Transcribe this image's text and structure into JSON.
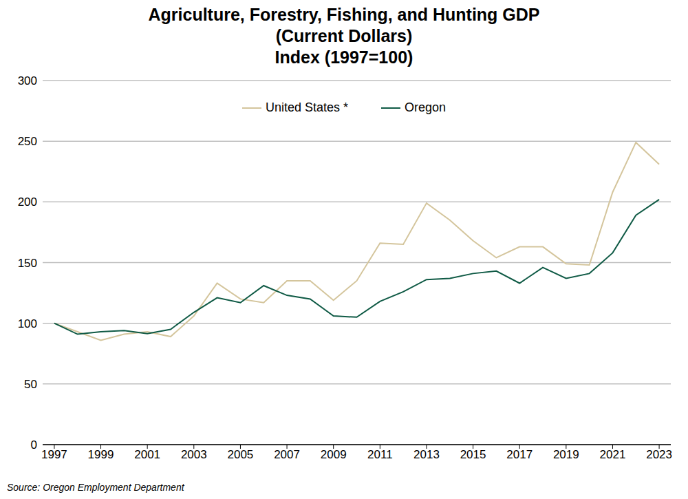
{
  "chart_data": {
    "type": "line",
    "title": "Agriculture, Forestry, Fishing, and Hunting GDP\n(Current Dollars)\nIndex (1997=100)",
    "source": "Source: Oregon Employment Department",
    "x": [
      1997,
      1998,
      1999,
      2000,
      2001,
      2002,
      2003,
      2004,
      2005,
      2006,
      2007,
      2008,
      2009,
      2010,
      2011,
      2012,
      2013,
      2014,
      2015,
      2016,
      2017,
      2018,
      2019,
      2020,
      2021,
      2022,
      2023
    ],
    "series": [
      {
        "name": "United States *",
        "color": "#d4c59c",
        "values": [
          100,
          93,
          86,
          91,
          93,
          89,
          106,
          133,
          120,
          117,
          135,
          135,
          119,
          135,
          166,
          165,
          199,
          185,
          168,
          154,
          163,
          163,
          149,
          148,
          208,
          249,
          231
        ]
      },
      {
        "name": "Oregon",
        "color": "#0f5a45",
        "values": [
          100,
          91,
          93,
          94,
          91.5,
          95,
          109,
          121,
          117,
          131,
          123,
          120,
          106,
          105,
          118,
          126,
          136,
          137,
          141,
          143,
          133,
          146,
          137,
          141,
          158,
          189,
          202
        ]
      }
    ],
    "xlim": [
      1996.5,
      2023.5
    ],
    "xticks": [
      1997,
      1999,
      2001,
      2003,
      2005,
      2007,
      2009,
      2011,
      2013,
      2015,
      2017,
      2019,
      2021,
      2023
    ],
    "ylim": [
      0,
      300
    ],
    "yticks": [
      0,
      50,
      100,
      150,
      200,
      250,
      300
    ],
    "grid": true,
    "legend": "top"
  }
}
